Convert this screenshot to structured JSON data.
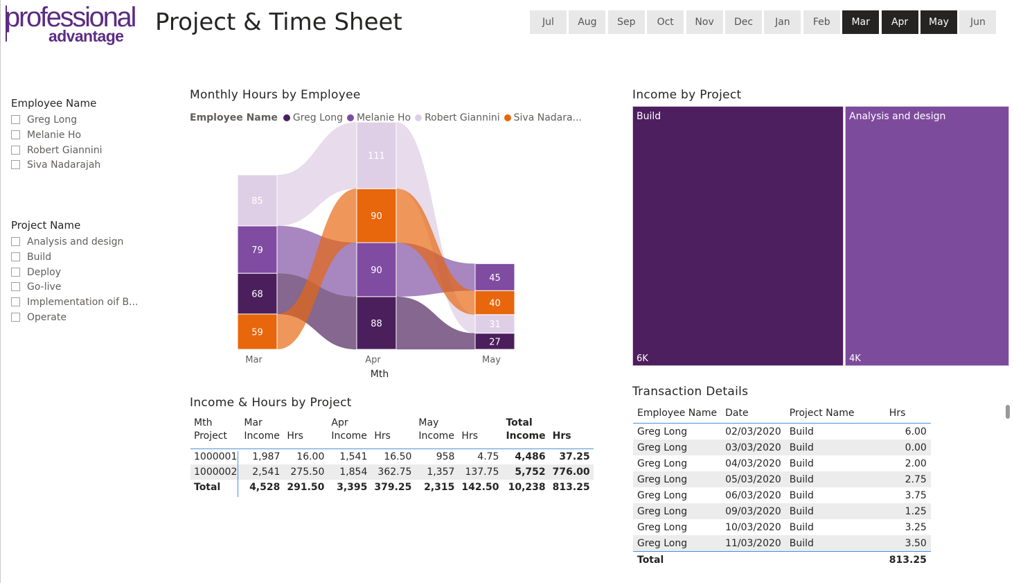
{
  "logo": {
    "line1": "professional",
    "line2": "advantage"
  },
  "title": "Project & Time Sheet",
  "months": [
    {
      "label": "Jul",
      "selected": false
    },
    {
      "label": "Aug",
      "selected": false
    },
    {
      "label": "Sep",
      "selected": false
    },
    {
      "label": "Oct",
      "selected": false
    },
    {
      "label": "Nov",
      "selected": false
    },
    {
      "label": "Dec",
      "selected": false
    },
    {
      "label": "Jan",
      "selected": false
    },
    {
      "label": "Feb",
      "selected": false
    },
    {
      "label": "Mar",
      "selected": true
    },
    {
      "label": "Apr",
      "selected": true
    },
    {
      "label": "May",
      "selected": true
    },
    {
      "label": "Jun",
      "selected": false
    }
  ],
  "employee_slicer": {
    "title": "Employee Name",
    "items": [
      "Greg Long",
      "Melanie Ho",
      "Robert Giannini",
      "Siva Nadarajah"
    ]
  },
  "project_slicer": {
    "title": "Project Name",
    "items": [
      "Analysis and design",
      "Build",
      "Deploy",
      "Go-live",
      "Implementation oif B...",
      "Operate"
    ]
  },
  "colors": {
    "greg": "#4b1f5c",
    "melanie": "#7f4ca1",
    "robert": "#dfcfe6",
    "siva": "#e8660c",
    "build": "#4e1f5e",
    "analysis": "#7d4b9c",
    "selected_month": "#252423",
    "month": "#e8e8e8"
  },
  "ribbon_chart": {
    "title": "Monthly Hours by Employee",
    "legend_title": "Employee Name",
    "legend": [
      "Greg Long",
      "Melanie Ho",
      "Robert Giannini",
      "Siva Nadara..."
    ],
    "xlabel": "Mth"
  },
  "chart_data": {
    "type": "ribbon",
    "title": "Monthly Hours by Employee",
    "xlabel": "Mth",
    "categories": [
      "Mar",
      "Apr",
      "May"
    ],
    "series": [
      {
        "name": "Greg Long",
        "values": [
          68,
          88,
          27
        ]
      },
      {
        "name": "Melanie Ho",
        "values": [
          79,
          90,
          45
        ]
      },
      {
        "name": "Robert Giannini",
        "values": [
          85,
          111,
          31
        ]
      },
      {
        "name": "Siva Nadarajah",
        "values": [
          59,
          90,
          40
        ]
      }
    ],
    "stack_order_bottom_to_top": [
      [
        "Siva Nadarajah",
        "Greg Long",
        "Melanie Ho",
        "Robert Giannini"
      ],
      [
        "Greg Long",
        "Melanie Ho",
        "Siva Nadarajah",
        "Robert Giannini"
      ],
      [
        "Greg Long",
        "Robert Giannini",
        "Siva Nadarajah",
        "Melanie Ho"
      ]
    ],
    "data_labels": true
  },
  "treemap": {
    "title": "Income by Project",
    "items": [
      {
        "name": "Build",
        "value_label": "6K",
        "value": 5752
      },
      {
        "name": "Analysis and design",
        "value_label": "4K",
        "value": 4486
      }
    ]
  },
  "matrix": {
    "title": "Income & Hours by Project",
    "row_header_top": "Mth",
    "row_header": "Project",
    "months": [
      "Mar",
      "Apr",
      "May"
    ],
    "total_label": "Total",
    "col_income": "Income",
    "col_hrs": "Hrs",
    "rows": [
      {
        "project": "1000001",
        "cells": [
          "1,987",
          "16.00",
          "1,541",
          "16.50",
          "958",
          "4.75"
        ],
        "total_income": "4,486",
        "total_hrs": "37.25"
      },
      {
        "project": "1000002",
        "cells": [
          "2,541",
          "275.50",
          "1,854",
          "362.75",
          "1,357",
          "137.75"
        ],
        "total_income": "5,752",
        "total_hrs": "776.00"
      }
    ],
    "total_row": {
      "label": "Total",
      "cells": [
        "4,528",
        "291.50",
        "3,395",
        "379.25",
        "2,315",
        "142.50"
      ],
      "total_income": "10,238",
      "total_hrs": "813.25"
    }
  },
  "transactions": {
    "title": "Transaction Details",
    "headers": [
      "Employee Name",
      "Date",
      "Project Name",
      "Hrs"
    ],
    "rows": [
      [
        "Greg Long",
        "02/03/2020",
        "Build",
        "6.00"
      ],
      [
        "Greg Long",
        "03/03/2020",
        "Build",
        "0.00"
      ],
      [
        "Greg Long",
        "04/03/2020",
        "Build",
        "2.00"
      ],
      [
        "Greg Long",
        "05/03/2020",
        "Build",
        "2.75"
      ],
      [
        "Greg Long",
        "06/03/2020",
        "Build",
        "3.75"
      ],
      [
        "Greg Long",
        "09/03/2020",
        "Build",
        "1.25"
      ],
      [
        "Greg Long",
        "10/03/2020",
        "Build",
        "3.25"
      ],
      [
        "Greg Long",
        "11/03/2020",
        "Build",
        "3.50"
      ]
    ],
    "total_label": "Total",
    "total_value": "813.25"
  }
}
